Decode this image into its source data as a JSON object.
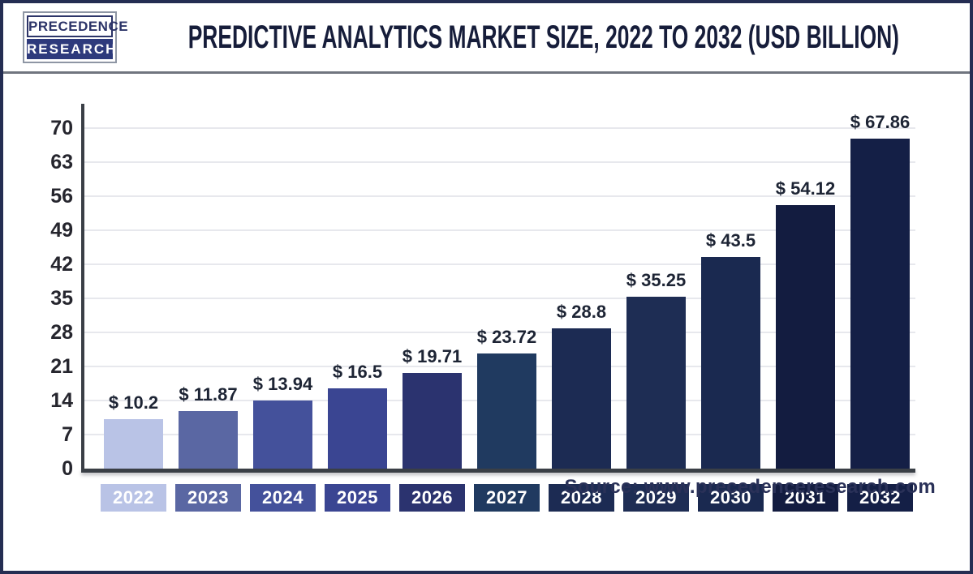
{
  "header": {
    "logo_line1": "PRECEDENCE",
    "logo_line2": "RESEARCH",
    "title": "PREDICTIVE ANALYTICS MARKET SIZE, 2022 TO 2032 (USD BILLION)"
  },
  "chart_data": {
    "type": "bar",
    "title": "PREDICTIVE ANALYTICS MARKET SIZE, 2022 TO 2032 (USD BILLION)",
    "categories": [
      "2022",
      "2023",
      "2024",
      "2025",
      "2026",
      "2027",
      "2028",
      "2029",
      "2030",
      "2031",
      "2032"
    ],
    "values": [
      10.2,
      11.87,
      13.94,
      16.5,
      19.71,
      23.72,
      28.8,
      35.25,
      43.5,
      54.12,
      67.86
    ],
    "value_labels": [
      "$ 10.2",
      "$ 11.87",
      "$ 13.94",
      "$ 16.5",
      "$ 19.71",
      "$ 23.72",
      "$ 28.8",
      "$ 35.25",
      "$ 43.5",
      "$ 54.12",
      "$ 67.86"
    ],
    "bar_colors": [
      "#b9c3e6",
      "#5a67a3",
      "#44519b",
      "#3a4592",
      "#2b336f",
      "#203a60",
      "#1c2b53",
      "#1e2d54",
      "#1a2950",
      "#131c40",
      "#141f46"
    ],
    "xlabel": "",
    "ylabel": "",
    "ylim": [
      0,
      70
    ],
    "yticks": [
      0,
      7,
      14,
      21,
      28,
      35,
      42,
      49,
      56,
      63,
      70
    ],
    "grid": true,
    "legend": "none"
  },
  "footer": {
    "source": "Source: www.precedenceresearch.com"
  },
  "colors": {
    "frame_border": "#242d52",
    "axis": "#3a3f46",
    "grid": "#e7e8ed",
    "title_text": "#161d3a",
    "label_text": "#1d2434",
    "logo_navy": "#2e3a7c",
    "divider": "#70757f",
    "source_text": "#2a3158"
  }
}
